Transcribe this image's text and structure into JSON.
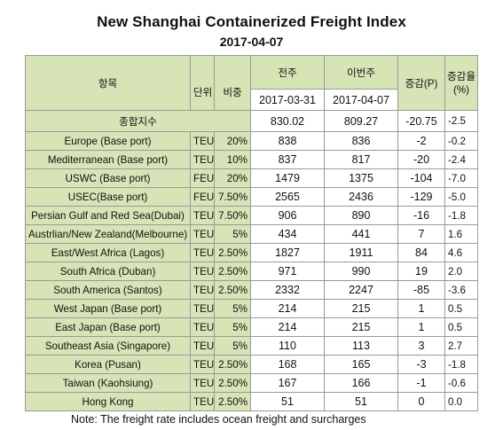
{
  "title": "New Shanghai Containerized Freight Index",
  "date": "2017-04-07",
  "header": {
    "item": "항목",
    "unit": "단위",
    "weight": "비중",
    "prev": "전주",
    "curr": "이번주",
    "change_p": "증감(P)",
    "change_rate": "증감율(%)",
    "prev_date": "2017-03-31",
    "curr_date": "2017-04-07"
  },
  "composite": {
    "label": "종합지수",
    "prev": "830.02",
    "curr": "809.27",
    "change": "-20.75",
    "rate": "-2.5"
  },
  "rows": [
    {
      "route": "Europe (Base port)",
      "unit": "TEU",
      "weight": "20%",
      "prev": "838",
      "curr": "836",
      "change": "-2",
      "rate": "-0.2"
    },
    {
      "route": "Mediterranean (Base port)",
      "unit": "TEU",
      "weight": "10%",
      "prev": "837",
      "curr": "817",
      "change": "-20",
      "rate": "-2.4"
    },
    {
      "route": "USWC (Base port)",
      "unit": "FEU",
      "weight": "20%",
      "prev": "1479",
      "curr": "1375",
      "change": "-104",
      "rate": "-7.0"
    },
    {
      "route": "USEC(Base port)",
      "unit": "FEU",
      "weight": "7.50%",
      "prev": "2565",
      "curr": "2436",
      "change": "-129",
      "rate": "-5.0"
    },
    {
      "route": "Persian Gulf and Red Sea(Dubai)",
      "unit": "TEU",
      "weight": "7.50%",
      "prev": "906",
      "curr": "890",
      "change": "-16",
      "rate": "-1.8"
    },
    {
      "route": "Austrlian/New Zealand(Melbourne)",
      "unit": "TEU",
      "weight": "5%",
      "prev": "434",
      "curr": "441",
      "change": "7",
      "rate": "1.6"
    },
    {
      "route": "East/West Africa (Lagos)",
      "unit": "TEU",
      "weight": "2.50%",
      "prev": "1827",
      "curr": "1911",
      "change": "84",
      "rate": "4.6"
    },
    {
      "route": "South Africa (Duban)",
      "unit": "TEU",
      "weight": "2.50%",
      "prev": "971",
      "curr": "990",
      "change": "19",
      "rate": "2.0"
    },
    {
      "route": "South America (Santos)",
      "unit": "TEU",
      "weight": "2.50%",
      "prev": "2332",
      "curr": "2247",
      "change": "-85",
      "rate": "-3.6"
    },
    {
      "route": "West Japan (Base port)",
      "unit": "TEU",
      "weight": "5%",
      "prev": "214",
      "curr": "215",
      "change": "1",
      "rate": "0.5"
    },
    {
      "route": "East Japan (Base port)",
      "unit": "TEU",
      "weight": "5%",
      "prev": "214",
      "curr": "215",
      "change": "1",
      "rate": "0.5"
    },
    {
      "route": "Southeast Asia (Singapore)",
      "unit": "TEU",
      "weight": "5%",
      "prev": "110",
      "curr": "113",
      "change": "3",
      "rate": "2.7"
    },
    {
      "route": "Korea (Pusan)",
      "unit": "TEU",
      "weight": "2.50%",
      "prev": "168",
      "curr": "165",
      "change": "-3",
      "rate": "-1.8"
    },
    {
      "route": "Taiwan (Kaohsiung)",
      "unit": "TEU",
      "weight": "2.50%",
      "prev": "167",
      "curr": "166",
      "change": "-1",
      "rate": "-0.6"
    },
    {
      "route": "Hong Kong",
      "unit": "TEU",
      "weight": "2.50%",
      "prev": "51",
      "curr": "51",
      "change": "0",
      "rate": "0.0"
    }
  ],
  "note": "Note: The freight rate includes ocean freight and surcharges",
  "colors": {
    "header_fill": "#d6e4b6",
    "border": "#9a9a9a"
  }
}
